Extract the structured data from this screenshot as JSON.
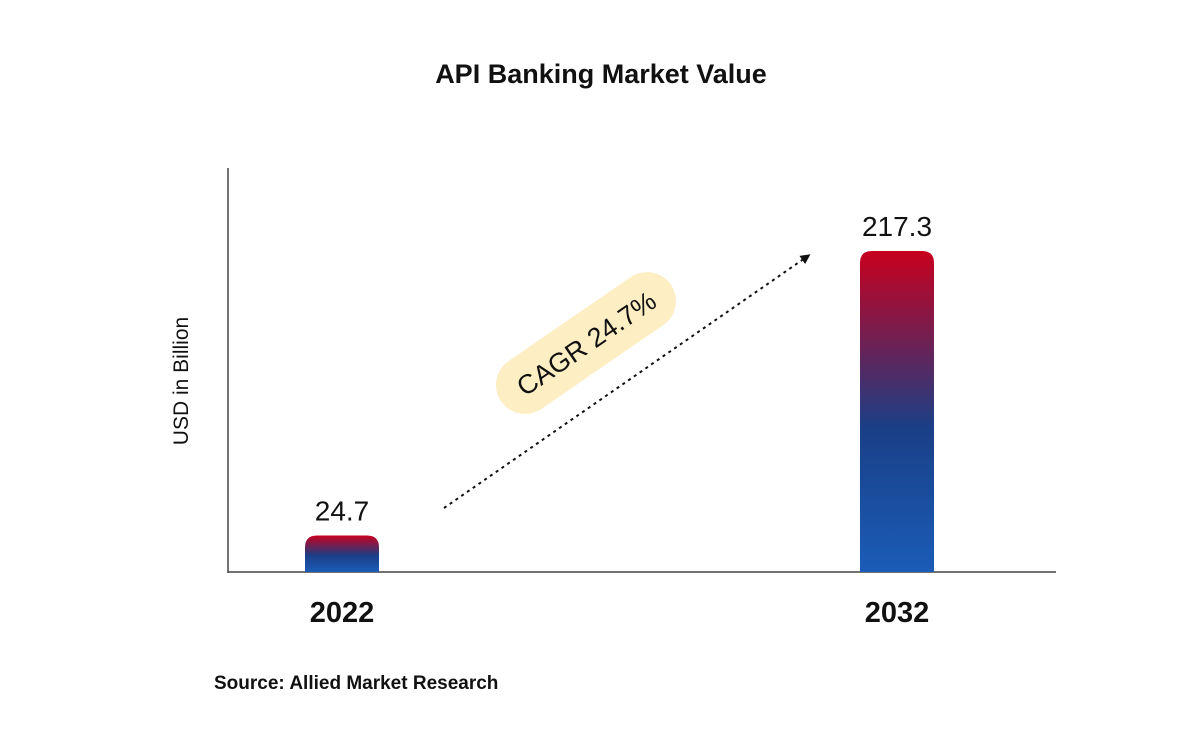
{
  "chart_data": {
    "type": "bar",
    "title": "API Banking Market Value",
    "ylabel": "USD in Billion",
    "xlabel": "",
    "categories": [
      "2022",
      "2032"
    ],
    "values": [
      24.7,
      217.3
    ],
    "data_labels": [
      "24.7",
      "217.3"
    ],
    "ylim": [
      0,
      230
    ],
    "grid": false,
    "legend": "none",
    "annotation": "CAGR 24.7%",
    "source": "Source: Allied Market Research",
    "colors": {
      "bar_top": "#c8001e",
      "bar_mid": "#1a3f86",
      "bar_bottom": "#1b5cb8",
      "annotation_bg": "#fdeec4",
      "axis": "#444444"
    }
  }
}
